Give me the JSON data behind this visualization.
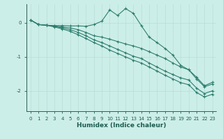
{
  "xlabel": "Humidex (Indice chaleur)",
  "ylabel": "",
  "bg_color": "#cceee8",
  "line_color": "#2e7d6e",
  "grid_color": "#b8ddd6",
  "x_ticks": [
    0,
    1,
    2,
    3,
    4,
    5,
    6,
    7,
    8,
    9,
    10,
    11,
    12,
    13,
    14,
    15,
    16,
    17,
    18,
    19,
    20,
    21,
    22,
    23
  ],
  "y_ticks": [
    0,
    -1,
    -2
  ],
  "xlim": [
    -0.5,
    23.5
  ],
  "ylim": [
    -2.6,
    0.55
  ],
  "series": [
    [
      0.08,
      -0.05,
      -0.07,
      -0.08,
      -0.08,
      -0.09,
      -0.09,
      -0.1,
      -0.05,
      0.05,
      0.38,
      0.22,
      0.42,
      0.28,
      -0.08,
      -0.42,
      -0.58,
      -0.75,
      -0.95,
      -1.25,
      -1.38,
      -1.65,
      -1.88,
      -1.8
    ],
    [
      0.08,
      -0.05,
      -0.07,
      -0.09,
      -0.12,
      -0.15,
      -0.2,
      -0.28,
      -0.38,
      -0.42,
      -0.48,
      -0.55,
      -0.62,
      -0.68,
      -0.75,
      -0.85,
      -0.95,
      -1.05,
      -1.18,
      -1.3,
      -1.38,
      -1.6,
      -1.85,
      -1.75
    ],
    [
      0.08,
      -0.05,
      -0.07,
      -0.1,
      -0.15,
      -0.2,
      -0.28,
      -0.38,
      -0.5,
      -0.58,
      -0.68,
      -0.78,
      -0.88,
      -0.98,
      -1.05,
      -1.18,
      -1.3,
      -1.42,
      -1.52,
      -1.62,
      -1.68,
      -1.92,
      -2.08,
      -2.0
    ],
    [
      0.08,
      -0.05,
      -0.07,
      -0.12,
      -0.18,
      -0.25,
      -0.35,
      -0.46,
      -0.58,
      -0.68,
      -0.8,
      -0.9,
      -1.0,
      -1.1,
      -1.18,
      -1.3,
      -1.42,
      -1.54,
      -1.65,
      -1.76,
      -1.82,
      -2.05,
      -2.18,
      -2.1
    ]
  ]
}
